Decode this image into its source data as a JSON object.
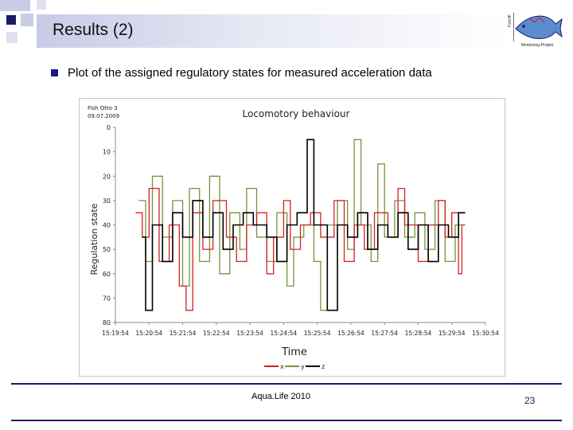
{
  "slide": {
    "title": "Results (2)",
    "bullet": "Plot of the assigned regulatory states for measured acceleration data",
    "footer": "Aqua.Life 2010",
    "page_number": "23"
  },
  "logo": {
    "side_text": "FishHF",
    "caption": "Monitoring-Projekt"
  },
  "colors": {
    "accent": "#1a1a66",
    "series_x": "#d42020",
    "series_y": "#77933c",
    "series_z": "#000000"
  },
  "chart_data": {
    "type": "line",
    "title": "Locomotory behaviour",
    "subtitle": "Fish Otto 3\n09.07.2009",
    "xlabel": "Time",
    "ylabel": "Regulation state",
    "ylim": [
      0,
      80
    ],
    "y_inverted": true,
    "yticks": [
      0,
      10,
      20,
      30,
      40,
      50,
      60,
      70,
      80
    ],
    "xticks": [
      "15:19:54",
      "15:20:54",
      "15:21:54",
      "15:22:54",
      "15:23:54",
      "15:24:54",
      "15:25:54",
      "15:26:54",
      "15:27:54",
      "15:28:54",
      "15:29:54",
      "15:30:54"
    ],
    "x_range_minutes": [
      0,
      11
    ],
    "series": [
      {
        "name": "x",
        "color": "#d42020",
        "points": [
          [
            0.6,
            35
          ],
          [
            0.8,
            35
          ],
          [
            0.8,
            45
          ],
          [
            1.0,
            45
          ],
          [
            1.0,
            25
          ],
          [
            1.3,
            25
          ],
          [
            1.3,
            55
          ],
          [
            1.6,
            55
          ],
          [
            1.6,
            40
          ],
          [
            1.9,
            40
          ],
          [
            1.9,
            65
          ],
          [
            2.1,
            65
          ],
          [
            2.1,
            75
          ],
          [
            2.3,
            75
          ],
          [
            2.3,
            35
          ],
          [
            2.6,
            35
          ],
          [
            2.6,
            50
          ],
          [
            2.9,
            50
          ],
          [
            2.9,
            30
          ],
          [
            3.3,
            30
          ],
          [
            3.3,
            45
          ],
          [
            3.6,
            45
          ],
          [
            3.6,
            55
          ],
          [
            3.9,
            55
          ],
          [
            3.9,
            40
          ],
          [
            4.2,
            40
          ],
          [
            4.2,
            35
          ],
          [
            4.5,
            35
          ],
          [
            4.5,
            60
          ],
          [
            4.7,
            60
          ],
          [
            4.7,
            45
          ],
          [
            5.0,
            45
          ],
          [
            5.0,
            30
          ],
          [
            5.2,
            30
          ],
          [
            5.2,
            50
          ],
          [
            5.5,
            50
          ],
          [
            5.5,
            40
          ],
          [
            5.8,
            40
          ],
          [
            5.8,
            35
          ],
          [
            6.1,
            35
          ],
          [
            6.1,
            45
          ],
          [
            6.5,
            45
          ],
          [
            6.5,
            30
          ],
          [
            6.8,
            30
          ],
          [
            6.8,
            55
          ],
          [
            7.1,
            55
          ],
          [
            7.1,
            40
          ],
          [
            7.4,
            40
          ],
          [
            7.4,
            50
          ],
          [
            7.7,
            50
          ],
          [
            7.7,
            35
          ],
          [
            8.1,
            35
          ],
          [
            8.1,
            45
          ],
          [
            8.4,
            45
          ],
          [
            8.4,
            25
          ],
          [
            8.6,
            25
          ],
          [
            8.6,
            40
          ],
          [
            9.0,
            40
          ],
          [
            9.0,
            55
          ],
          [
            9.3,
            55
          ],
          [
            9.3,
            40
          ],
          [
            9.6,
            40
          ],
          [
            9.6,
            30
          ],
          [
            9.8,
            30
          ],
          [
            9.8,
            45
          ],
          [
            10.0,
            45
          ],
          [
            10.0,
            35
          ],
          [
            10.2,
            35
          ],
          [
            10.2,
            60
          ],
          [
            10.3,
            60
          ],
          [
            10.3,
            40
          ],
          [
            10.4,
            40
          ]
        ]
      },
      {
        "name": "y",
        "color": "#77933c",
        "points": [
          [
            0.7,
            30
          ],
          [
            0.9,
            30
          ],
          [
            0.9,
            55
          ],
          [
            1.1,
            55
          ],
          [
            1.1,
            20
          ],
          [
            1.4,
            20
          ],
          [
            1.4,
            45
          ],
          [
            1.7,
            45
          ],
          [
            1.7,
            30
          ],
          [
            2.0,
            30
          ],
          [
            2.0,
            65
          ],
          [
            2.2,
            65
          ],
          [
            2.2,
            25
          ],
          [
            2.5,
            25
          ],
          [
            2.5,
            55
          ],
          [
            2.8,
            55
          ],
          [
            2.8,
            20
          ],
          [
            3.1,
            20
          ],
          [
            3.1,
            60
          ],
          [
            3.4,
            60
          ],
          [
            3.4,
            35
          ],
          [
            3.7,
            35
          ],
          [
            3.7,
            50
          ],
          [
            3.9,
            50
          ],
          [
            3.9,
            25
          ],
          [
            4.2,
            25
          ],
          [
            4.2,
            45
          ],
          [
            4.5,
            45
          ],
          [
            4.5,
            55
          ],
          [
            4.8,
            55
          ],
          [
            4.8,
            35
          ],
          [
            5.1,
            35
          ],
          [
            5.1,
            65
          ],
          [
            5.3,
            65
          ],
          [
            5.3,
            45
          ],
          [
            5.6,
            45
          ],
          [
            5.6,
            40
          ],
          [
            5.9,
            40
          ],
          [
            5.9,
            55
          ],
          [
            6.1,
            55
          ],
          [
            6.1,
            75
          ],
          [
            6.3,
            75
          ],
          [
            6.3,
            40
          ],
          [
            6.6,
            40
          ],
          [
            6.6,
            30
          ],
          [
            6.9,
            30
          ],
          [
            6.9,
            50
          ],
          [
            7.1,
            50
          ],
          [
            7.1,
            5
          ],
          [
            7.3,
            5
          ],
          [
            7.3,
            40
          ],
          [
            7.6,
            40
          ],
          [
            7.6,
            55
          ],
          [
            7.8,
            55
          ],
          [
            7.8,
            15
          ],
          [
            8.0,
            15
          ],
          [
            8.0,
            45
          ],
          [
            8.3,
            45
          ],
          [
            8.3,
            30
          ],
          [
            8.6,
            30
          ],
          [
            8.6,
            45
          ],
          [
            8.9,
            45
          ],
          [
            8.9,
            35
          ],
          [
            9.2,
            35
          ],
          [
            9.2,
            50
          ],
          [
            9.5,
            50
          ],
          [
            9.5,
            30
          ],
          [
            9.8,
            30
          ],
          [
            9.8,
            55
          ],
          [
            10.1,
            55
          ],
          [
            10.1,
            40
          ],
          [
            10.3,
            40
          ]
        ]
      },
      {
        "name": "z",
        "color": "#000000",
        "points": [
          [
            0.8,
            45
          ],
          [
            0.9,
            45
          ],
          [
            0.9,
            75
          ],
          [
            1.1,
            75
          ],
          [
            1.1,
            40
          ],
          [
            1.4,
            40
          ],
          [
            1.4,
            55
          ],
          [
            1.7,
            55
          ],
          [
            1.7,
            35
          ],
          [
            2.0,
            35
          ],
          [
            2.0,
            45
          ],
          [
            2.3,
            45
          ],
          [
            2.3,
            30
          ],
          [
            2.6,
            30
          ],
          [
            2.6,
            45
          ],
          [
            2.9,
            45
          ],
          [
            2.9,
            35
          ],
          [
            3.2,
            35
          ],
          [
            3.2,
            50
          ],
          [
            3.5,
            50
          ],
          [
            3.5,
            40
          ],
          [
            3.8,
            40
          ],
          [
            3.8,
            35
          ],
          [
            4.1,
            35
          ],
          [
            4.1,
            40
          ],
          [
            4.5,
            40
          ],
          [
            4.5,
            45
          ],
          [
            4.8,
            45
          ],
          [
            4.8,
            55
          ],
          [
            5.1,
            55
          ],
          [
            5.1,
            40
          ],
          [
            5.4,
            40
          ],
          [
            5.4,
            35
          ],
          [
            5.7,
            35
          ],
          [
            5.7,
            5
          ],
          [
            5.9,
            5
          ],
          [
            5.9,
            40
          ],
          [
            6.3,
            40
          ],
          [
            6.3,
            75
          ],
          [
            6.6,
            75
          ],
          [
            6.6,
            40
          ],
          [
            6.9,
            40
          ],
          [
            6.9,
            45
          ],
          [
            7.2,
            45
          ],
          [
            7.2,
            35
          ],
          [
            7.5,
            35
          ],
          [
            7.5,
            50
          ],
          [
            7.8,
            50
          ],
          [
            7.8,
            40
          ],
          [
            8.1,
            40
          ],
          [
            8.1,
            45
          ],
          [
            8.4,
            45
          ],
          [
            8.4,
            35
          ],
          [
            8.7,
            35
          ],
          [
            8.7,
            50
          ],
          [
            9.0,
            50
          ],
          [
            9.0,
            40
          ],
          [
            9.3,
            40
          ],
          [
            9.3,
            55
          ],
          [
            9.6,
            55
          ],
          [
            9.6,
            40
          ],
          [
            9.9,
            40
          ],
          [
            9.9,
            45
          ],
          [
            10.2,
            45
          ],
          [
            10.2,
            35
          ],
          [
            10.4,
            35
          ]
        ]
      }
    ],
    "legend": [
      "x",
      "y",
      "z"
    ],
    "legend_position": "bottom"
  }
}
